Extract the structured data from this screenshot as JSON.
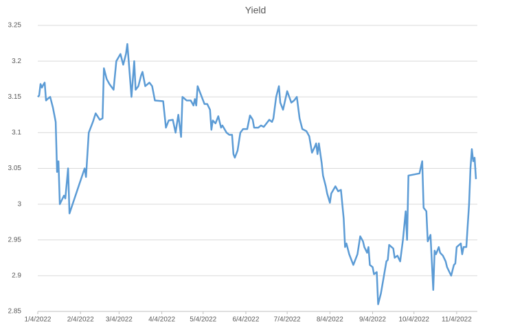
{
  "chart_data": {
    "type": "line",
    "title": "Yield",
    "xlim": [
      "1/4/2022",
      "11/19/2022"
    ],
    "xticks": [
      "1/4/2022",
      "2/4/2022",
      "3/4/2022",
      "4/4/2022",
      "5/4/2022",
      "6/4/2022",
      "7/4/2022",
      "8/4/2022",
      "9/4/2022",
      "10/4/2022",
      "11/4/2022"
    ],
    "ylim": [
      2.85,
      3.25
    ],
    "yticks": [
      2.85,
      2.9,
      2.95,
      3,
      3.05,
      3.1,
      3.15,
      3.2,
      3.25
    ],
    "grid": true,
    "series": [
      {
        "name": "Yield",
        "color": "#5b9bd5",
        "x": [
          "1/4/2022",
          "1/5/2022",
          "1/6/2022",
          "1/7/2022",
          "1/8/2022",
          "1/9/2022",
          "1/10/2022",
          "1/11/2022",
          "1/13/2022",
          "1/15/2022",
          "1/17/2022",
          "1/18/2022",
          "1/19/2022",
          "1/20/2022",
          "1/23/2022",
          "1/24/2022",
          "1/26/2022",
          "1/27/2022",
          "2/7/2022",
          "2/8/2022",
          "2/10/2022",
          "2/13/2022",
          "2/15/2022",
          "2/18/2022",
          "2/20/2022",
          "2/21/2022",
          "2/23/2022",
          "2/25/2022",
          "2/28/2022",
          "3/2/2022",
          "3/5/2022",
          "3/7/2022",
          "3/9/2022",
          "3/10/2022",
          "3/11/2022",
          "3/13/2022",
          "3/15/2022",
          "3/16/2022",
          "3/18/2022",
          "3/20/2022",
          "3/21/2022",
          "3/23/2022",
          "3/26/2022",
          "3/28/2022",
          "3/30/2022",
          "4/5/2022",
          "4/7/2022",
          "4/9/2022",
          "4/12/2022",
          "4/14/2022",
          "4/16/2022",
          "4/18/2022",
          "4/19/2022",
          "4/22/2022",
          "4/25/2022",
          "4/27/2022",
          "4/28/2022",
          "4/29/2022",
          "4/30/2022",
          "5/2/2022",
          "5/5/2022",
          "5/7/2022",
          "5/9/2022",
          "5/10/2022",
          "5/11/2022",
          "5/13/2022",
          "5/15/2022",
          "5/17/2022",
          "5/18/2022",
          "5/21/2022",
          "5/23/2022",
          "5/25/2022",
          "5/26/2022",
          "5/27/2022",
          "5/29/2022",
          "5/31/2022",
          "6/2/2022",
          "6/5/2022",
          "6/7/2022",
          "6/9/2022",
          "6/10/2022",
          "6/13/2022",
          "6/15/2022",
          "6/17/2022",
          "6/21/2022",
          "6/23/2022",
          "6/24/2022",
          "6/26/2022",
          "6/28/2022",
          "6/29/2022",
          "7/1/2022",
          "7/4/2022",
          "7/7/2022",
          "7/9/2022",
          "7/11/2022",
          "7/13/2022",
          "7/15/2022",
          "7/18/2022",
          "7/20/2022",
          "7/22/2022",
          "7/24/2022",
          "7/25/2022",
          "7/26/2022",
          "7/27/2022",
          "7/29/2022",
          "7/30/2022",
          "8/1/2022",
          "8/2/2022",
          "8/4/2022",
          "8/5/2022",
          "8/8/2022",
          "8/10/2022",
          "8/12/2022",
          "8/14/2022",
          "8/15/2022",
          "8/16/2022",
          "8/18/2022",
          "8/20/2022",
          "8/21/2022",
          "8/23/2022",
          "8/24/2022",
          "8/26/2022",
          "8/28/2022",
          "8/29/2022",
          "8/31/2022",
          "9/1/2022",
          "9/2/2022",
          "9/4/2022",
          "9/5/2022",
          "9/7/2022",
          "9/8/2022",
          "9/10/2022",
          "9/14/2022",
          "9/15/2022",
          "9/16/2022",
          "9/19/2022",
          "9/20/2022",
          "9/22/2022",
          "9/24/2022",
          "9/26/2022",
          "9/28/2022",
          "9/29/2022",
          "9/30/2022",
          "10/8/2022",
          "10/10/2022",
          "10/11/2022",
          "10/13/2022",
          "10/14/2022",
          "10/16/2022",
          "10/18/2022",
          "10/19/2022",
          "10/20/2022",
          "10/22/2022",
          "10/23/2022",
          "10/25/2022",
          "10/27/2022",
          "10/28/2022",
          "10/31/2022",
          "11/2/2022",
          "11/3/2022",
          "11/4/2022",
          "11/7/2022",
          "11/8/2022",
          "11/9/2022",
          "11/11/2022",
          "11/13/2022",
          "11/14/2022",
          "11/15/2022",
          "11/16/2022",
          "11/17/2022",
          "11/18/2022"
        ],
        "values": [
          3.15,
          3.152,
          3.168,
          3.163,
          3.167,
          3.17,
          3.145,
          3.147,
          3.15,
          3.135,
          3.115,
          3.045,
          3.06,
          3.0,
          3.012,
          3.008,
          3.05,
          2.987,
          3.05,
          3.038,
          3.1,
          3.115,
          3.127,
          3.118,
          3.12,
          3.19,
          3.175,
          3.168,
          3.16,
          3.2,
          3.21,
          3.195,
          3.21,
          3.224,
          3.2,
          3.15,
          3.2,
          3.16,
          3.165,
          3.18,
          3.185,
          3.165,
          3.17,
          3.165,
          3.145,
          3.144,
          3.107,
          3.117,
          3.118,
          3.1,
          3.125,
          3.094,
          3.15,
          3.145,
          3.145,
          3.138,
          3.147,
          3.138,
          3.165,
          3.155,
          3.14,
          3.14,
          3.132,
          3.104,
          3.117,
          3.113,
          3.123,
          3.107,
          3.11,
          3.1,
          3.097,
          3.097,
          3.07,
          3.065,
          3.075,
          3.1,
          3.105,
          3.105,
          3.124,
          3.118,
          3.107,
          3.107,
          3.11,
          3.108,
          3.118,
          3.115,
          3.12,
          3.15,
          3.165,
          3.142,
          3.132,
          3.158,
          3.142,
          3.145,
          3.15,
          3.12,
          3.105,
          3.102,
          3.095,
          3.072,
          3.08,
          3.085,
          3.07,
          3.085,
          3.058,
          3.04,
          3.025,
          3.015,
          3.002,
          3.015,
          3.025,
          3.018,
          3.02,
          2.98,
          2.94,
          2.945,
          2.93,
          2.92,
          2.915,
          2.925,
          2.93,
          2.955,
          2.948,
          2.94,
          2.932,
          2.94,
          2.915,
          2.912,
          2.902,
          2.905,
          2.86,
          2.875,
          2.92,
          2.922,
          2.943,
          2.938,
          2.925,
          2.928,
          2.92,
          2.95,
          2.99,
          2.95,
          3.04,
          3.043,
          3.06,
          2.995,
          2.99,
          2.948,
          2.957,
          2.88,
          2.935,
          2.93,
          2.94,
          2.932,
          2.928,
          2.92,
          2.912,
          2.9,
          2.915,
          2.917,
          2.94,
          2.945,
          2.93,
          2.94,
          2.94,
          3.0,
          3.05,
          3.077,
          3.06,
          3.065,
          3.035
        ]
      }
    ]
  }
}
